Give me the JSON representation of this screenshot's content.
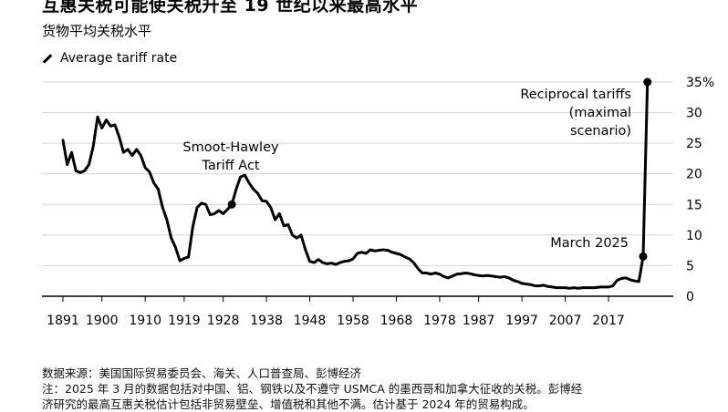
{
  "title": "互惠关税可能使关税升至 19 世纪以来最高水平",
  "subtitle": "货物平均关税水平",
  "legend_label": "Average tariff rate",
  "footer": {
    "source": "数据来源：美国国际贸易委员会、海关、人口普查局、彭博经济",
    "note1": "注：2025 年 3 月的数据包括对中国、铝、钢铁以及不遵守 USMCA 的墨西哥和加拿大征收的关税。彭博经",
    "note2": "济研究的最高互惠关税估计包括非贸易壁垒、增值税和其他不满。估计基于 2024 年的贸易构成。"
  },
  "annotations": {
    "smoot_line1": "Smoot-Hawley",
    "smoot_line2": "Tariff Act",
    "reciprocal_line1": "Reciprocal tariffs",
    "reciprocal_line2": "(maximal",
    "reciprocal_line3": "scenario)",
    "march": "March 2025"
  },
  "chart_data": {
    "type": "line",
    "title": "互惠关税可能使关税升至 19 世纪以来最高水平",
    "subtitle": "货物平均关税水平",
    "xlabel": "",
    "ylabel": "",
    "xlim": [
      1891,
      2025
    ],
    "ylim": [
      0,
      35
    ],
    "x_tick_labels": [
      "1891",
      "1900",
      "1910",
      "1919",
      "1928",
      "1938",
      "1948",
      "1958",
      "1968",
      "1978",
      "1987",
      "1997",
      "2007",
      "2017"
    ],
    "y_ticks": [
      0,
      5,
      10,
      15,
      20,
      25,
      30,
      35
    ],
    "y_tick_labels": [
      "0",
      "5",
      "10",
      "15",
      "20",
      "25",
      "30",
      "35%"
    ],
    "grid": "horizontal",
    "legend_position": "top-left",
    "series": [
      {
        "name": "Average tariff rate",
        "points": [
          [
            1891,
            25.5
          ],
          [
            1892,
            21.5
          ],
          [
            1893,
            23.5
          ],
          [
            1894,
            20.5
          ],
          [
            1895,
            20.2
          ],
          [
            1896,
            20.5
          ],
          [
            1897,
            21.5
          ],
          [
            1898,
            24.5
          ],
          [
            1899,
            29.3
          ],
          [
            1900,
            27.5
          ],
          [
            1901,
            28.8
          ],
          [
            1902,
            27.8
          ],
          [
            1903,
            28.0
          ],
          [
            1904,
            26.0
          ],
          [
            1905,
            23.5
          ],
          [
            1906,
            24.0
          ],
          [
            1907,
            23.0
          ],
          [
            1908,
            24.0
          ],
          [
            1909,
            23.0
          ],
          [
            1910,
            21.0
          ],
          [
            1911,
            20.3
          ],
          [
            1912,
            18.5
          ],
          [
            1913,
            17.5
          ],
          [
            1914,
            14.5
          ],
          [
            1915,
            12.5
          ],
          [
            1916,
            9.5
          ],
          [
            1917,
            8.0
          ],
          [
            1918,
            5.8
          ],
          [
            1919,
            6.2
          ],
          [
            1920,
            6.4
          ],
          [
            1921,
            11.4
          ],
          [
            1922,
            14.5
          ],
          [
            1923,
            15.2
          ],
          [
            1924,
            15.0
          ],
          [
            1925,
            13.3
          ],
          [
            1926,
            13.5
          ],
          [
            1927,
            14.0
          ],
          [
            1928,
            13.5
          ],
          [
            1929,
            14.2
          ],
          [
            1930,
            15.0
          ],
          [
            1931,
            17.5
          ],
          [
            1932,
            19.5
          ],
          [
            1933,
            19.8
          ],
          [
            1934,
            18.5
          ],
          [
            1935,
            17.5
          ],
          [
            1936,
            16.8
          ],
          [
            1937,
            15.6
          ],
          [
            1938,
            15.5
          ],
          [
            1939,
            14.5
          ],
          [
            1940,
            12.5
          ],
          [
            1941,
            13.5
          ],
          [
            1942,
            11.5
          ],
          [
            1943,
            11.7
          ],
          [
            1944,
            10.0
          ],
          [
            1945,
            9.5
          ],
          [
            1946,
            10.0
          ],
          [
            1947,
            7.6
          ],
          [
            1948,
            5.7
          ],
          [
            1949,
            5.5
          ],
          [
            1950,
            6.0
          ],
          [
            1951,
            5.5
          ],
          [
            1952,
            5.3
          ],
          [
            1953,
            5.4
          ],
          [
            1954,
            5.2
          ],
          [
            1955,
            5.5
          ],
          [
            1956,
            5.7
          ],
          [
            1957,
            5.8
          ],
          [
            1958,
            6.1
          ],
          [
            1959,
            7.0
          ],
          [
            1960,
            7.2
          ],
          [
            1961,
            7.0
          ],
          [
            1962,
            7.6
          ],
          [
            1963,
            7.4
          ],
          [
            1964,
            7.5
          ],
          [
            1965,
            7.6
          ],
          [
            1966,
            7.5
          ],
          [
            1967,
            7.2
          ],
          [
            1968,
            7.0
          ],
          [
            1969,
            6.8
          ],
          [
            1970,
            6.4
          ],
          [
            1971,
            6.1
          ],
          [
            1972,
            5.5
          ],
          [
            1973,
            4.5
          ],
          [
            1974,
            3.8
          ],
          [
            1975,
            3.8
          ],
          [
            1976,
            3.6
          ],
          [
            1977,
            3.8
          ],
          [
            1978,
            3.6
          ],
          [
            1979,
            3.2
          ],
          [
            1980,
            3.0
          ],
          [
            1981,
            3.3
          ],
          [
            1982,
            3.6
          ],
          [
            1983,
            3.7
          ],
          [
            1984,
            3.8
          ],
          [
            1985,
            3.7
          ],
          [
            1986,
            3.5
          ],
          [
            1987,
            3.4
          ],
          [
            1988,
            3.3
          ],
          [
            1989,
            3.4
          ],
          [
            1990,
            3.3
          ],
          [
            1991,
            3.2
          ],
          [
            1992,
            3.1
          ],
          [
            1993,
            3.2
          ],
          [
            1994,
            3.0
          ],
          [
            1995,
            2.6
          ],
          [
            1996,
            2.4
          ],
          [
            1997,
            2.1
          ],
          [
            1998,
            2.0
          ],
          [
            1999,
            1.9
          ],
          [
            2000,
            1.7
          ],
          [
            2001,
            1.7
          ],
          [
            2002,
            1.8
          ],
          [
            2003,
            1.6
          ],
          [
            2004,
            1.5
          ],
          [
            2005,
            1.4
          ],
          [
            2006,
            1.4
          ],
          [
            2007,
            1.4
          ],
          [
            2008,
            1.3
          ],
          [
            2009,
            1.4
          ],
          [
            2010,
            1.3
          ],
          [
            2011,
            1.4
          ],
          [
            2012,
            1.4
          ],
          [
            2013,
            1.4
          ],
          [
            2014,
            1.4
          ],
          [
            2015,
            1.5
          ],
          [
            2016,
            1.5
          ],
          [
            2017,
            1.5
          ],
          [
            2018,
            1.7
          ],
          [
            2019,
            2.6
          ],
          [
            2020,
            2.9
          ],
          [
            2021,
            3.0
          ],
          [
            2022,
            2.7
          ],
          [
            2023,
            2.5
          ],
          [
            2024,
            2.4
          ],
          [
            2025,
            6.5
          ],
          [
            2026,
            35.0
          ]
        ]
      }
    ],
    "highlighted_points": [
      {
        "x": 1930,
        "y": 15.0
      },
      {
        "x": 2025,
        "y": 6.5
      },
      {
        "x": 2026,
        "y": 35.0
      }
    ]
  }
}
